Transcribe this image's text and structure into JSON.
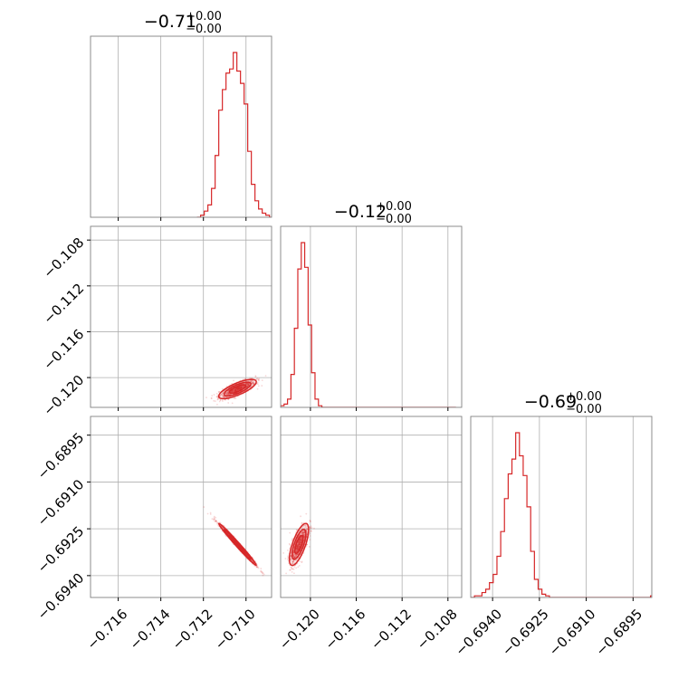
{
  "chart_data": {
    "type": "scatter",
    "plot_kind": "corner",
    "color": "#d62728",
    "grid": true,
    "titles": [
      {
        "median": "−0.71",
        "plus": "+0.00",
        "minus": "−0.00"
      },
      {
        "median": "−0.12",
        "plus": "+0.00",
        "minus": "−0.00"
      },
      {
        "median": "−0.69",
        "plus": "+0.00",
        "minus": "−0.00"
      }
    ],
    "params": [
      {
        "range": [
          -0.7173,
          -0.7088
        ],
        "ticks": [
          -0.716,
          -0.714,
          -0.712,
          -0.71
        ],
        "tick_labels": [
          "−0.716",
          "−0.714",
          "−0.712",
          "−0.710"
        ],
        "median": -0.7104,
        "sigma": 0.00042
      },
      {
        "range": [
          -0.1226,
          -0.1068
        ],
        "ticks": [
          -0.12,
          -0.116,
          -0.112,
          -0.108
        ],
        "tick_labels": [
          "−0.120",
          "−0.116",
          "−0.112",
          "−0.108"
        ],
        "y_tick_labels": [
          "−0.108",
          "−0.112",
          "−0.116",
          "−0.120"
        ],
        "median": -0.121,
        "sigma": 0.0004
      },
      {
        "range": [
          -0.6947,
          -0.6889
        ],
        "ticks": [
          -0.694,
          -0.6925,
          -0.691,
          -0.6895
        ],
        "tick_labels": [
          "−0.6940",
          "−0.6925",
          "−0.6910",
          "−0.6895"
        ],
        "y_tick_labels": [
          "−0.6895",
          "−0.6910",
          "−0.6925",
          "−0.6940"
        ],
        "median": -0.693,
        "sigma": 0.00032
      }
    ],
    "histograms": [
      {
        "param": 0,
        "bin_edges_start": -0.7123,
        "bin_width": 0.00017,
        "counts": [
          0,
          1,
          3,
          6,
          14,
          30,
          52,
          62,
          70,
          72,
          80,
          71,
          65,
          55,
          32,
          16,
          8,
          4,
          2,
          1,
          0
        ]
      },
      {
        "param": 1,
        "bin_edges_start": -0.1226,
        "bin_width": 0.0003,
        "counts": [
          1,
          2,
          5,
          20,
          48,
          84,
          100,
          85,
          50,
          21,
          5,
          1,
          0,
          0,
          0,
          0,
          0,
          0,
          0,
          0,
          0,
          0,
          0,
          0,
          0,
          0,
          0,
          0,
          0,
          0,
          0,
          0,
          0,
          0,
          0,
          0,
          0,
          0,
          0,
          0,
          0,
          0,
          0,
          0,
          0,
          0,
          0,
          0,
          0,
          0,
          0
        ]
      },
      {
        "param": 2,
        "bin_edges_start": -0.6947,
        "bin_width": 0.00012,
        "counts": [
          0,
          1,
          1,
          3,
          5,
          9,
          14,
          25,
          40,
          60,
          75,
          84,
          100,
          86,
          74,
          55,
          28,
          11,
          5,
          2,
          1,
          0,
          0,
          0,
          0,
          0,
          0,
          0,
          0,
          0,
          0,
          0,
          0,
          0,
          0,
          0,
          0,
          0,
          0,
          0,
          0,
          0,
          0,
          0,
          0,
          0,
          0,
          0,
          1
        ]
      }
    ],
    "pairs": [
      {
        "x_param": 0,
        "y_param": 1,
        "correlation": 0.75
      },
      {
        "x_param": 0,
        "y_param": 2,
        "correlation": -0.99
      },
      {
        "x_param": 1,
        "y_param": 2,
        "correlation": 0.7
      }
    ]
  }
}
